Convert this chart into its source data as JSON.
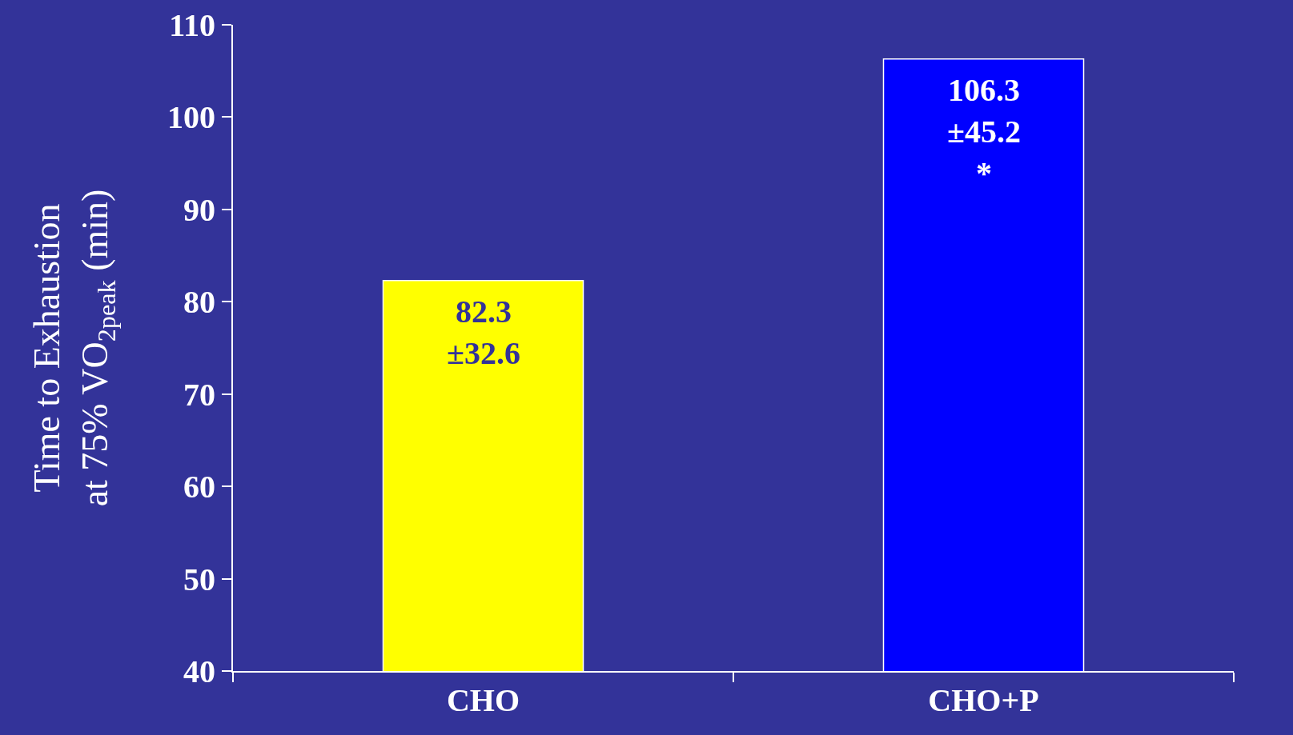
{
  "chart_data": {
    "type": "bar",
    "ylabel": "Time to Exhaustion\nat 75% VO$_{2peak}$ (min)",
    "categories": [
      "CHO",
      "CHO+P"
    ],
    "values": [
      82.3,
      106.3
    ],
    "colors": [
      "#ffff00",
      "#0000ff"
    ],
    "value_labels": [
      "82.3\n±32.6",
      "106.3\n±45.2\n*"
    ],
    "ylim": [
      40,
      110
    ],
    "yticks": [
      40,
      50,
      60,
      70,
      80,
      90,
      100,
      110
    ],
    "grid": false
  }
}
